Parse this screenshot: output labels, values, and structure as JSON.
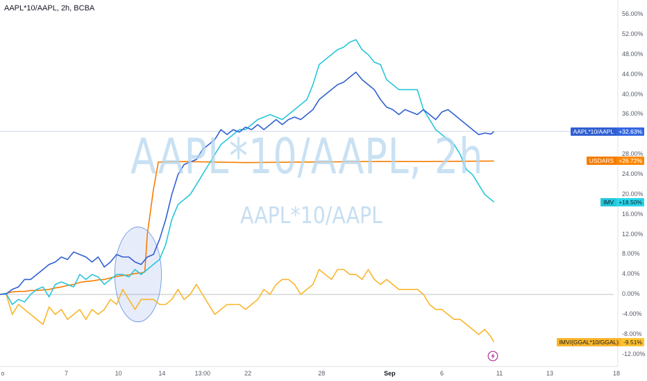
{
  "symbol_title": "AAPL*10/AAPL, 2h, BCBA",
  "watermark": {
    "main": "AAPL*10/AAPL, 2h",
    "sub": "AAPL*10/AAPL"
  },
  "icons": {
    "flash": "lightning-icon"
  },
  "colors": {
    "blue": "#2f5fd0",
    "teal": "#26c6da",
    "orange": "#f57c00",
    "gold": "#f9b52a",
    "ellipse": "#5b8de0"
  },
  "chart_data": {
    "type": "line",
    "y_unit": "%",
    "ylim": [
      -14,
      57
    ],
    "xlim": [
      0,
      100
    ],
    "y_ticks": [
      "56.00%",
      "52.00%",
      "48.00%",
      "44.00%",
      "40.00%",
      "36.00%",
      "32.00%",
      "28.00%",
      "24.00%",
      "20.00%",
      "16.00%",
      "12.00%",
      "8.00%",
      "4.00%",
      "0.00%",
      "-4.00%",
      "-8.00%",
      "-12.00%"
    ],
    "x_ticks": [
      {
        "label": "o",
        "x": 0
      },
      {
        "label": "7",
        "x": 10.8
      },
      {
        "label": "10",
        "x": 19.3
      },
      {
        "label": "14",
        "x": 26.4
      },
      {
        "label": "13:00",
        "x": 33.0
      },
      {
        "label": "22",
        "x": 40.4
      },
      {
        "label": "28",
        "x": 52.4
      },
      {
        "label": "Sep",
        "x": 63.5,
        "bold": true
      },
      {
        "label": "6",
        "x": 72.0
      },
      {
        "label": "11",
        "x": 81.4
      },
      {
        "label": "13",
        "x": 89.6
      },
      {
        "label": "18",
        "x": 100
      }
    ],
    "series": [
      {
        "name": "AAPL*10/AAPL",
        "last": "+32.63%",
        "color": "#2f5fd0",
        "points": [
          [
            0,
            0
          ],
          [
            1,
            0.1
          ],
          [
            2,
            1
          ],
          [
            3,
            1.5
          ],
          [
            4,
            3
          ],
          [
            5,
            3
          ],
          [
            6,
            4
          ],
          [
            7,
            5
          ],
          [
            8,
            6
          ],
          [
            9,
            6.5
          ],
          [
            10,
            7.5
          ],
          [
            11,
            7
          ],
          [
            12,
            8.5
          ],
          [
            13,
            8
          ],
          [
            14,
            7.5
          ],
          [
            15,
            6.5
          ],
          [
            16,
            7.5
          ],
          [
            17,
            5.5
          ],
          [
            18,
            6.5
          ],
          [
            19,
            8
          ],
          [
            20,
            7.5
          ],
          [
            21,
            7.5
          ],
          [
            22,
            6.5
          ],
          [
            23,
            6
          ],
          [
            24,
            7.5
          ],
          [
            25,
            8
          ],
          [
            26,
            11
          ],
          [
            27,
            15
          ],
          [
            28,
            20
          ],
          [
            29,
            24
          ],
          [
            30,
            26
          ],
          [
            31,
            26.5
          ],
          [
            32,
            27
          ],
          [
            33,
            29
          ],
          [
            34,
            30
          ],
          [
            35,
            31
          ],
          [
            36,
            33
          ],
          [
            37,
            32
          ],
          [
            38,
            33
          ],
          [
            39,
            32.5
          ],
          [
            40,
            33.5
          ],
          [
            41,
            33
          ],
          [
            42,
            34
          ],
          [
            43,
            33
          ],
          [
            44,
            34
          ],
          [
            45,
            35
          ],
          [
            46,
            34
          ],
          [
            47,
            35
          ],
          [
            48,
            35.5
          ],
          [
            49,
            35
          ],
          [
            50,
            36
          ],
          [
            51,
            37
          ],
          [
            52,
            39
          ],
          [
            53,
            40
          ],
          [
            54,
            41
          ],
          [
            55,
            42
          ],
          [
            56,
            42.5
          ],
          [
            57,
            43.5
          ],
          [
            58,
            44.5
          ],
          [
            59,
            43
          ],
          [
            60,
            42
          ],
          [
            61,
            41
          ],
          [
            62,
            39
          ],
          [
            63,
            37.5
          ],
          [
            64,
            37
          ],
          [
            65,
            36
          ],
          [
            66,
            37
          ],
          [
            67,
            36.5
          ],
          [
            68,
            36
          ],
          [
            69,
            37
          ],
          [
            70,
            36
          ],
          [
            71,
            35
          ],
          [
            72,
            36.5
          ],
          [
            73,
            37
          ],
          [
            74,
            36
          ],
          [
            75,
            35
          ],
          [
            76,
            34
          ],
          [
            77,
            33
          ],
          [
            78,
            32
          ],
          [
            79,
            32.3
          ],
          [
            80,
            32.1
          ],
          [
            80.5,
            32.63
          ]
        ]
      },
      {
        "name": "IMV",
        "last": "+18.50%",
        "color": "#26c6da",
        "points": [
          [
            0,
            0
          ],
          [
            1,
            0.2
          ],
          [
            2,
            -2
          ],
          [
            3,
            -1
          ],
          [
            4,
            -1.5
          ],
          [
            5,
            0
          ],
          [
            6,
            1
          ],
          [
            7,
            1.5
          ],
          [
            8,
            -0.5
          ],
          [
            9,
            2
          ],
          [
            10,
            2.5
          ],
          [
            11,
            2
          ],
          [
            12,
            1.5
          ],
          [
            13,
            4
          ],
          [
            14,
            3
          ],
          [
            15,
            4
          ],
          [
            16,
            3.5
          ],
          [
            17,
            2
          ],
          [
            18,
            3
          ],
          [
            19,
            4
          ],
          [
            20,
            4
          ],
          [
            21,
            3.5
          ],
          [
            22,
            5
          ],
          [
            23,
            4
          ],
          [
            24,
            5
          ],
          [
            25,
            6
          ],
          [
            26,
            7
          ],
          [
            27,
            10
          ],
          [
            28,
            15
          ],
          [
            29,
            18
          ],
          [
            30,
            19
          ],
          [
            31,
            20
          ],
          [
            32,
            22
          ],
          [
            33,
            24
          ],
          [
            34,
            26
          ],
          [
            35,
            28
          ],
          [
            36,
            30
          ],
          [
            37,
            31
          ],
          [
            38,
            32
          ],
          [
            39,
            33
          ],
          [
            40,
            33
          ],
          [
            41,
            34
          ],
          [
            42,
            35
          ],
          [
            43,
            35.5
          ],
          [
            44,
            36
          ],
          [
            45,
            35.5
          ],
          [
            46,
            35
          ],
          [
            47,
            36
          ],
          [
            48,
            37
          ],
          [
            49,
            38
          ],
          [
            50,
            39
          ],
          [
            51,
            42
          ],
          [
            52,
            46
          ],
          [
            53,
            47
          ],
          [
            54,
            48
          ],
          [
            55,
            49
          ],
          [
            56,
            49.5
          ],
          [
            57,
            50.5
          ],
          [
            58,
            51
          ],
          [
            59,
            49
          ],
          [
            60,
            48
          ],
          [
            61,
            46.5
          ],
          [
            62,
            46
          ],
          [
            63,
            43
          ],
          [
            64,
            42
          ],
          [
            65,
            41
          ],
          [
            66,
            41
          ],
          [
            67,
            41
          ],
          [
            68,
            41
          ],
          [
            69,
            37
          ],
          [
            70,
            35
          ],
          [
            71,
            33
          ],
          [
            72,
            32
          ],
          [
            73,
            31
          ],
          [
            74,
            30
          ],
          [
            75,
            28
          ],
          [
            76,
            25
          ],
          [
            77,
            24
          ],
          [
            78,
            22
          ],
          [
            79,
            20
          ],
          [
            80,
            19
          ],
          [
            80.5,
            18.5
          ]
        ]
      },
      {
        "name": "USDARS",
        "last": "+26.72%",
        "color": "#f57c00",
        "points": [
          [
            0,
            0
          ],
          [
            1,
            0.2
          ],
          [
            2,
            0.5
          ],
          [
            3,
            0.6
          ],
          [
            4,
            0.6
          ],
          [
            5,
            0.8
          ],
          [
            6,
            0.8
          ],
          [
            7,
            0.9
          ],
          [
            8,
            1
          ],
          [
            9,
            1.3
          ],
          [
            10,
            1.5
          ],
          [
            11,
            1.8
          ],
          [
            12,
            2
          ],
          [
            13,
            2.4
          ],
          [
            14,
            2.6
          ],
          [
            15,
            2.7
          ],
          [
            16,
            2.9
          ],
          [
            17,
            3
          ],
          [
            18,
            3.3
          ],
          [
            19,
            3.6
          ],
          [
            20,
            3.8
          ],
          [
            21,
            3.9
          ],
          [
            22,
            4.2
          ],
          [
            23,
            4.3
          ],
          [
            23.6,
            4.5
          ],
          [
            24,
            12
          ],
          [
            25,
            21
          ],
          [
            25.8,
            26.5
          ],
          [
            30,
            26.6
          ],
          [
            40,
            26.4
          ],
          [
            50,
            26.5
          ],
          [
            60,
            26.6
          ],
          [
            70,
            26.6
          ],
          [
            80.5,
            26.72
          ]
        ]
      },
      {
        "name": "IMV/(GGAL*10/GGAL)",
        "last": "-9.51%",
        "color": "#f9b52a",
        "points": [
          [
            0,
            0
          ],
          [
            1,
            0.1
          ],
          [
            2,
            -4
          ],
          [
            3,
            -2
          ],
          [
            4,
            -3
          ],
          [
            5,
            -4
          ],
          [
            6,
            -5
          ],
          [
            7,
            -6
          ],
          [
            8,
            -2.5
          ],
          [
            9,
            -4
          ],
          [
            10,
            -3
          ],
          [
            11,
            -5
          ],
          [
            12,
            -4
          ],
          [
            13,
            -3
          ],
          [
            14,
            -5
          ],
          [
            15,
            -3
          ],
          [
            16,
            -4
          ],
          [
            17,
            -3
          ],
          [
            18,
            -1
          ],
          [
            19,
            -2
          ],
          [
            20,
            1
          ],
          [
            21,
            -1
          ],
          [
            22,
            -3
          ],
          [
            23,
            -1
          ],
          [
            24,
            -1
          ],
          [
            25,
            -1
          ],
          [
            26,
            -2
          ],
          [
            27,
            -2
          ],
          [
            28,
            -1
          ],
          [
            29,
            1
          ],
          [
            30,
            -1
          ],
          [
            31,
            0
          ],
          [
            32,
            2
          ],
          [
            33,
            0
          ],
          [
            34,
            -2
          ],
          [
            35,
            -4
          ],
          [
            36,
            -3
          ],
          [
            37,
            -2
          ],
          [
            38,
            -2
          ],
          [
            39,
            -2
          ],
          [
            40,
            -3
          ],
          [
            41,
            -2
          ],
          [
            42,
            -1
          ],
          [
            43,
            1
          ],
          [
            44,
            0
          ],
          [
            45,
            2
          ],
          [
            46,
            3
          ],
          [
            47,
            3
          ],
          [
            48,
            2
          ],
          [
            49,
            0
          ],
          [
            50,
            1
          ],
          [
            51,
            2
          ],
          [
            52,
            5
          ],
          [
            53,
            4
          ],
          [
            54,
            3
          ],
          [
            55,
            5
          ],
          [
            56,
            5
          ],
          [
            57,
            4
          ],
          [
            58,
            4
          ],
          [
            59,
            3
          ],
          [
            60,
            5
          ],
          [
            61,
            3
          ],
          [
            62,
            2
          ],
          [
            63,
            3
          ],
          [
            64,
            2
          ],
          [
            65,
            1
          ],
          [
            66,
            1
          ],
          [
            67,
            1
          ],
          [
            68,
            1
          ],
          [
            69,
            0
          ],
          [
            70,
            -2
          ],
          [
            71,
            -3
          ],
          [
            72,
            -3
          ],
          [
            73,
            -4
          ],
          [
            74,
            -5
          ],
          [
            75,
            -5
          ],
          [
            76,
            -6
          ],
          [
            77,
            -7
          ],
          [
            78,
            -8
          ],
          [
            79,
            -7
          ],
          [
            80,
            -8.5
          ],
          [
            80.5,
            -9.51
          ]
        ]
      }
    ],
    "annotation": {
      "type": "ellipse",
      "cx": 22.5,
      "cy": 4,
      "rx": 3.8,
      "ry": 9.5
    },
    "legend": "right-axis-tags"
  }
}
